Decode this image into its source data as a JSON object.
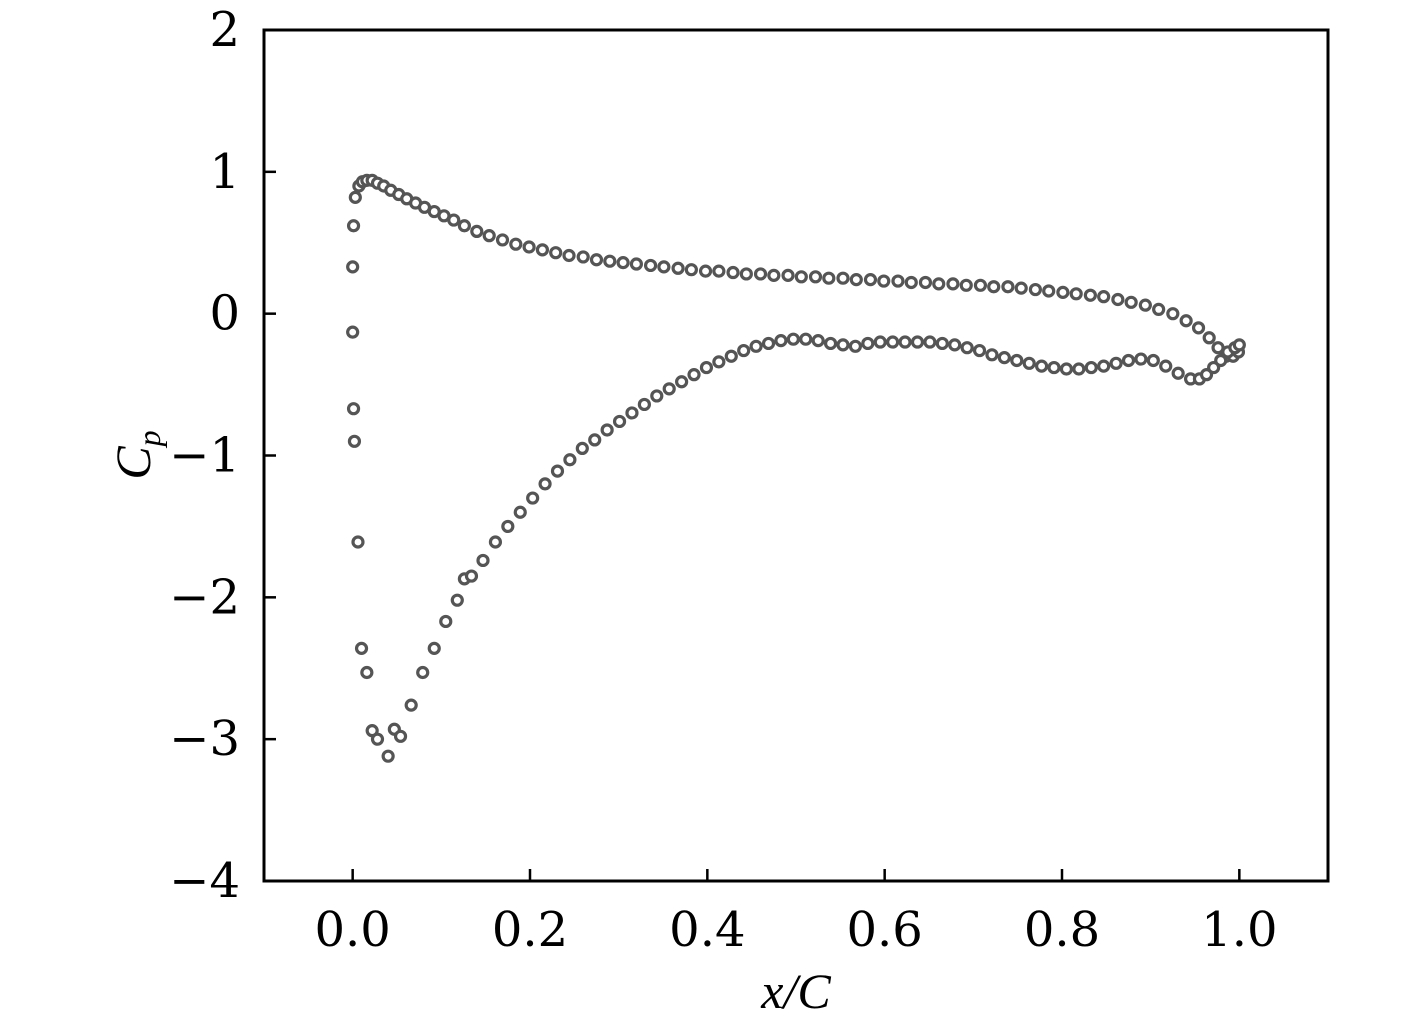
{
  "chart_data": {
    "type": "scatter",
    "xlabel": "x/C",
    "ylabel": "Cp",
    "xlim": [
      -0.1,
      1.1
    ],
    "ylim": [
      -4,
      2
    ],
    "xticks": [
      0.0,
      0.2,
      0.4,
      0.6,
      0.8,
      1.0
    ],
    "xtick_labels": [
      "0.0",
      "0.2",
      "0.4",
      "0.6",
      "0.8",
      "1.0"
    ],
    "yticks": [
      -4,
      -3,
      -2,
      -1,
      0,
      1,
      2
    ],
    "ytick_labels": [
      "−4",
      "−3",
      "−2",
      "−1",
      "0",
      "1",
      "2"
    ],
    "grid": false,
    "marker_color": "#555555",
    "series": [
      {
        "x": [
          0.0,
          0.001,
          0.003,
          0.007,
          0.011,
          0.016,
          0.022,
          0.028,
          0.035,
          0.043,
          0.052,
          0.061,
          0.071,
          0.081,
          0.092,
          0.103,
          0.114,
          0.126,
          0.14,
          0.154,
          0.169,
          0.184,
          0.199,
          0.214,
          0.229,
          0.244,
          0.26,
          0.275,
          0.29,
          0.305,
          0.32,
          0.336,
          0.351,
          0.367,
          0.382,
          0.398,
          0.413,
          0.429,
          0.444,
          0.46,
          0.475,
          0.491,
          0.506,
          0.522,
          0.537,
          0.553,
          0.568,
          0.584,
          0.599,
          0.615,
          0.63,
          0.646,
          0.661,
          0.677,
          0.692,
          0.708,
          0.723,
          0.739,
          0.754,
          0.77,
          0.785,
          0.801,
          0.816,
          0.832,
          0.847,
          0.863,
          0.878,
          0.894,
          0.909,
          0.925,
          0.94,
          0.954,
          0.966,
          0.976,
          0.985,
          0.993,
          0.999
        ],
        "y": [
          0.33,
          0.62,
          0.82,
          0.9,
          0.93,
          0.94,
          0.94,
          0.92,
          0.9,
          0.87,
          0.84,
          0.81,
          0.78,
          0.75,
          0.72,
          0.69,
          0.66,
          0.62,
          0.58,
          0.55,
          0.52,
          0.49,
          0.47,
          0.45,
          0.43,
          0.41,
          0.4,
          0.38,
          0.37,
          0.36,
          0.35,
          0.34,
          0.33,
          0.32,
          0.31,
          0.3,
          0.3,
          0.29,
          0.28,
          0.28,
          0.27,
          0.27,
          0.26,
          0.26,
          0.25,
          0.25,
          0.24,
          0.24,
          0.23,
          0.23,
          0.22,
          0.22,
          0.21,
          0.21,
          0.2,
          0.2,
          0.19,
          0.19,
          0.18,
          0.17,
          0.16,
          0.15,
          0.14,
          0.13,
          0.12,
          0.1,
          0.08,
          0.06,
          0.03,
          0.0,
          -0.05,
          -0.1,
          -0.17,
          -0.24,
          -0.3,
          -0.3,
          -0.27
        ]
      },
      {
        "x": [
          0.0,
          0.001,
          0.002,
          0.006,
          0.01,
          0.016,
          0.022,
          0.028,
          0.04,
          0.047,
          0.054,
          0.066,
          0.079,
          0.092,
          0.105,
          0.118,
          0.126,
          0.134,
          0.147,
          0.161,
          0.175,
          0.189,
          0.203,
          0.217,
          0.231,
          0.245,
          0.259,
          0.273,
          0.287,
          0.301,
          0.315,
          0.329,
          0.343,
          0.357,
          0.371,
          0.385,
          0.399,
          0.413,
          0.427,
          0.441,
          0.455,
          0.469,
          0.483,
          0.497,
          0.511,
          0.525,
          0.539,
          0.553,
          0.567,
          0.581,
          0.595,
          0.609,
          0.623,
          0.637,
          0.651,
          0.665,
          0.679,
          0.693,
          0.707,
          0.721,
          0.735,
          0.749,
          0.763,
          0.777,
          0.791,
          0.805,
          0.819,
          0.833,
          0.847,
          0.861,
          0.875,
          0.889,
          0.903,
          0.917,
          0.931,
          0.945,
          0.955,
          0.963,
          0.971,
          0.979,
          0.987,
          0.995,
          1.0
        ],
        "y": [
          -0.13,
          -0.67,
          -0.9,
          -1.61,
          -2.36,
          -2.53,
          -2.94,
          -3.0,
          -3.12,
          -2.93,
          -2.98,
          -2.76,
          -2.53,
          -2.36,
          -2.17,
          -2.02,
          -1.87,
          -1.85,
          -1.74,
          -1.61,
          -1.5,
          -1.4,
          -1.3,
          -1.2,
          -1.11,
          -1.03,
          -0.95,
          -0.89,
          -0.82,
          -0.76,
          -0.7,
          -0.64,
          -0.58,
          -0.53,
          -0.48,
          -0.43,
          -0.38,
          -0.34,
          -0.3,
          -0.26,
          -0.23,
          -0.21,
          -0.19,
          -0.18,
          -0.18,
          -0.19,
          -0.21,
          -0.22,
          -0.23,
          -0.21,
          -0.2,
          -0.2,
          -0.2,
          -0.2,
          -0.2,
          -0.21,
          -0.22,
          -0.24,
          -0.26,
          -0.29,
          -0.31,
          -0.33,
          -0.35,
          -0.37,
          -0.38,
          -0.39,
          -0.39,
          -0.38,
          -0.37,
          -0.35,
          -0.33,
          -0.32,
          -0.33,
          -0.37,
          -0.42,
          -0.46,
          -0.46,
          -0.43,
          -0.38,
          -0.33,
          -0.27,
          -0.24,
          -0.22
        ]
      }
    ]
  }
}
